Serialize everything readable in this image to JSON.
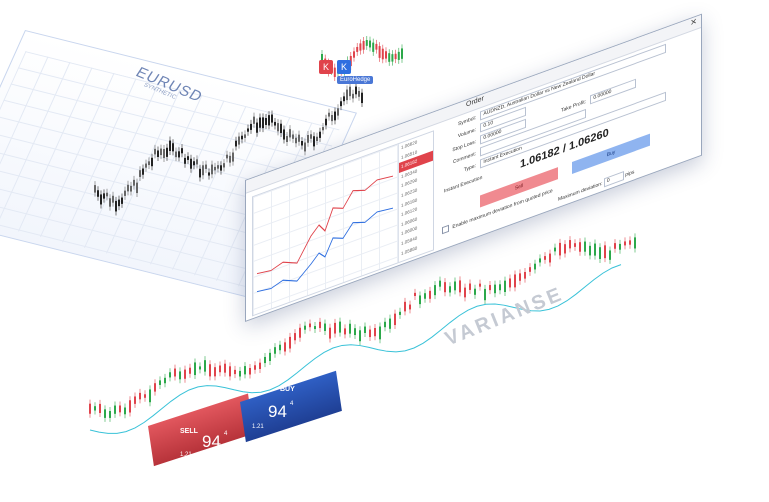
{
  "back_chart": {
    "title": "EURUSD",
    "subtitle": "SYNTHETIC"
  },
  "mini_chart": {
    "indicator_label": "EuroHedge",
    "red_button": "K",
    "blue_button": "K"
  },
  "order_window": {
    "title": "Order",
    "close": "✕",
    "fields": {
      "symbol_label": "Symbol:",
      "symbol_value": "AUDNZD, Australian Dollar vs New Zealand Dollar",
      "volume_label": "Volume:",
      "volume_value": "0.10",
      "stoploss_label": "Stop Loss:",
      "stoploss_value": "0.00000",
      "takeprofit_label": "Take Profit:",
      "takeprofit_value": "0.00000",
      "comment_label": "Comment:",
      "comment_value": "",
      "type_label": "Type:",
      "type_value": "Instant Execution"
    },
    "section_label": "Instant Execution",
    "bid": "1.06182",
    "ask": "1.06260",
    "separator": "/",
    "sell_label": "Sell",
    "buy_label": "Buy",
    "checkbox_label": "Enable maximum deviation from quoted price",
    "deviation_label": "Maximum deviation:",
    "deviation_value": "0",
    "deviation_unit": "pips",
    "price_ticks": [
      "1.06620",
      "1.06510",
      "1.06182",
      "1.06340",
      "1.06290",
      "1.06230",
      "1.06180",
      "1.06120",
      "1.06060",
      "1.06000",
      "1.05940",
      "1.05880"
    ]
  },
  "watermark": "VARIANSE",
  "trade_widget": {
    "sell_label": "SELL",
    "buy_label": "BUY",
    "sell_price": "94",
    "sell_superscript": "4",
    "sell_prefix": "1.21",
    "buy_price": "94",
    "buy_superscript": "4",
    "buy_prefix": "1.21"
  },
  "colors": {
    "bull": "#2ca84a",
    "bear": "#e0434b",
    "accent": "#2f5fc4",
    "line": "#39c2d8"
  }
}
